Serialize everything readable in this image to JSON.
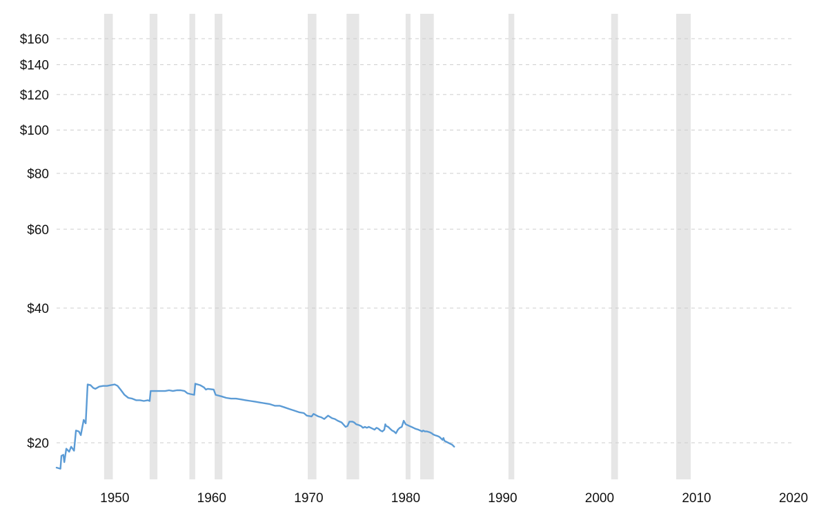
{
  "chart_data": {
    "type": "line",
    "title": "",
    "xlabel": "",
    "ylabel": "",
    "y_scale": "log",
    "x_range": [
      1944,
      2019
    ],
    "y_range": [
      17.5,
      170
    ],
    "grid": "horizontal dashed",
    "colors": {
      "line": "#5b9bd5",
      "recession": "#e6e6e6",
      "grid": "#cccccc"
    },
    "y_ticks": [
      {
        "value": 20,
        "label": "$20"
      },
      {
        "value": 40,
        "label": "$40"
      },
      {
        "value": 60,
        "label": "$60"
      },
      {
        "value": 80,
        "label": "$80"
      },
      {
        "value": 100,
        "label": "$100"
      },
      {
        "value": 120,
        "label": "$120"
      },
      {
        "value": 140,
        "label": "$140"
      },
      {
        "value": 160,
        "label": "$160"
      }
    ],
    "x_ticks": [
      {
        "value": 1950,
        "label": "1950"
      },
      {
        "value": 1960,
        "label": "1960"
      },
      {
        "value": 1970,
        "label": "1970"
      },
      {
        "value": 1980,
        "label": "1980"
      },
      {
        "value": 1990,
        "label": "1990"
      },
      {
        "value": 2000,
        "label": "2000"
      },
      {
        "value": 2010,
        "label": "2010"
      },
      {
        "value": 2020,
        "label": "2020"
      }
    ],
    "recessions": [
      [
        1948.9,
        1949.8
      ],
      [
        1953.6,
        1954.4
      ],
      [
        1957.7,
        1958.3
      ],
      [
        1960.3,
        1961.1
      ],
      [
        1969.9,
        1970.8
      ],
      [
        1973.9,
        1975.2
      ],
      [
        1980.0,
        1980.5
      ],
      [
        1981.5,
        1982.9
      ],
      [
        1990.6,
        1991.2
      ],
      [
        2001.2,
        2001.9
      ],
      [
        2007.9,
        2009.4
      ]
    ],
    "series": [
      {
        "points": [
          [
            1944.0,
            17.6
          ],
          [
            1944.4,
            17.5
          ],
          [
            1944.5,
            18.7
          ],
          [
            1944.7,
            18.8
          ],
          [
            1944.8,
            18.1
          ],
          [
            1945.0,
            19.4
          ],
          [
            1945.3,
            19.1
          ],
          [
            1945.5,
            19.6
          ],
          [
            1945.8,
            19.2
          ],
          [
            1946.0,
            21.3
          ],
          [
            1946.3,
            21.2
          ],
          [
            1946.5,
            20.8
          ],
          [
            1946.8,
            22.5
          ],
          [
            1947.0,
            22.1
          ],
          [
            1947.2,
            27.0
          ],
          [
            1947.5,
            26.9
          ],
          [
            1947.8,
            26.5
          ],
          [
            1948.0,
            26.4
          ],
          [
            1948.4,
            26.7
          ],
          [
            1948.8,
            26.8
          ],
          [
            1949.2,
            26.8
          ],
          [
            1949.6,
            26.9
          ],
          [
            1950.0,
            27.0
          ],
          [
            1950.3,
            26.8
          ],
          [
            1950.6,
            26.3
          ],
          [
            1951.0,
            25.6
          ],
          [
            1951.4,
            25.2
          ],
          [
            1951.8,
            25.1
          ],
          [
            1952.2,
            24.9
          ],
          [
            1952.6,
            24.9
          ],
          [
            1953.0,
            24.8
          ],
          [
            1953.4,
            24.9
          ],
          [
            1953.6,
            24.8
          ],
          [
            1953.7,
            26.1
          ],
          [
            1954.2,
            26.1
          ],
          [
            1954.8,
            26.1
          ],
          [
            1955.2,
            26.1
          ],
          [
            1955.6,
            26.2
          ],
          [
            1956.0,
            26.1
          ],
          [
            1956.4,
            26.2
          ],
          [
            1956.8,
            26.2
          ],
          [
            1957.2,
            26.1
          ],
          [
            1957.5,
            25.8
          ],
          [
            1957.8,
            25.7
          ],
          [
            1958.2,
            25.6
          ],
          [
            1958.3,
            27.1
          ],
          [
            1958.8,
            26.9
          ],
          [
            1959.2,
            26.6
          ],
          [
            1959.4,
            26.3
          ],
          [
            1959.6,
            26.4
          ],
          [
            1960.2,
            26.3
          ],
          [
            1960.4,
            25.6
          ],
          [
            1961.0,
            25.4
          ],
          [
            1961.5,
            25.2
          ],
          [
            1962.0,
            25.1
          ],
          [
            1962.5,
            25.1
          ],
          [
            1963.0,
            25.0
          ],
          [
            1963.5,
            24.9
          ],
          [
            1964.0,
            24.8
          ],
          [
            1964.5,
            24.7
          ],
          [
            1965.0,
            24.6
          ],
          [
            1965.5,
            24.5
          ],
          [
            1966.0,
            24.4
          ],
          [
            1966.5,
            24.2
          ],
          [
            1967.0,
            24.2
          ],
          [
            1967.5,
            24.0
          ],
          [
            1968.0,
            23.8
          ],
          [
            1968.5,
            23.6
          ],
          [
            1969.0,
            23.4
          ],
          [
            1969.5,
            23.3
          ],
          [
            1969.8,
            23.0
          ],
          [
            1970.3,
            22.9
          ],
          [
            1970.5,
            23.2
          ],
          [
            1971.0,
            22.9
          ],
          [
            1971.3,
            22.8
          ],
          [
            1971.6,
            22.6
          ],
          [
            1972.0,
            23.0
          ],
          [
            1972.4,
            22.7
          ],
          [
            1972.7,
            22.6
          ],
          [
            1973.0,
            22.4
          ],
          [
            1973.4,
            22.2
          ],
          [
            1973.8,
            21.7
          ],
          [
            1974.0,
            21.8
          ],
          [
            1974.2,
            22.3
          ],
          [
            1974.5,
            22.3
          ],
          [
            1974.7,
            22.2
          ],
          [
            1974.9,
            22.0
          ],
          [
            1975.2,
            21.9
          ],
          [
            1975.4,
            21.8
          ],
          [
            1975.6,
            21.6
          ],
          [
            1975.8,
            21.7
          ],
          [
            1976.0,
            21.6
          ],
          [
            1976.2,
            21.7
          ],
          [
            1976.4,
            21.6
          ],
          [
            1976.6,
            21.5
          ],
          [
            1976.8,
            21.4
          ],
          [
            1977.0,
            21.6
          ],
          [
            1977.2,
            21.5
          ],
          [
            1977.4,
            21.3
          ],
          [
            1977.6,
            21.2
          ],
          [
            1977.8,
            21.4
          ],
          [
            1977.9,
            22.0
          ],
          [
            1978.0,
            21.8
          ],
          [
            1978.2,
            21.7
          ],
          [
            1978.4,
            21.5
          ],
          [
            1978.6,
            21.3
          ],
          [
            1978.8,
            21.2
          ],
          [
            1979.0,
            21.0
          ],
          [
            1979.2,
            21.4
          ],
          [
            1979.4,
            21.6
          ],
          [
            1979.6,
            21.7
          ],
          [
            1979.8,
            22.4
          ],
          [
            1980.0,
            22.0
          ],
          [
            1980.4,
            21.8
          ],
          [
            1980.6,
            21.7
          ],
          [
            1980.8,
            21.6
          ],
          [
            1981.0,
            21.5
          ],
          [
            1981.3,
            21.4
          ],
          [
            1981.5,
            21.3
          ],
          [
            1981.7,
            21.2
          ],
          [
            1981.8,
            21.3
          ],
          [
            1982.0,
            21.2
          ],
          [
            1982.2,
            21.2
          ],
          [
            1982.5,
            21.1
          ],
          [
            1982.7,
            21.0
          ],
          [
            1982.8,
            20.9
          ],
          [
            1983.0,
            20.8
          ],
          [
            1983.3,
            20.7
          ],
          [
            1983.5,
            20.6
          ],
          [
            1983.7,
            20.4
          ],
          [
            1983.8,
            20.3
          ],
          [
            1983.9,
            20.5
          ],
          [
            1984.0,
            20.2
          ],
          [
            1984.2,
            20.1
          ],
          [
            1984.4,
            20.0
          ],
          [
            1984.6,
            19.9
          ],
          [
            1984.8,
            19.8
          ],
          [
            1985.0,
            19.6
          ]
        ]
      }
    ]
  }
}
